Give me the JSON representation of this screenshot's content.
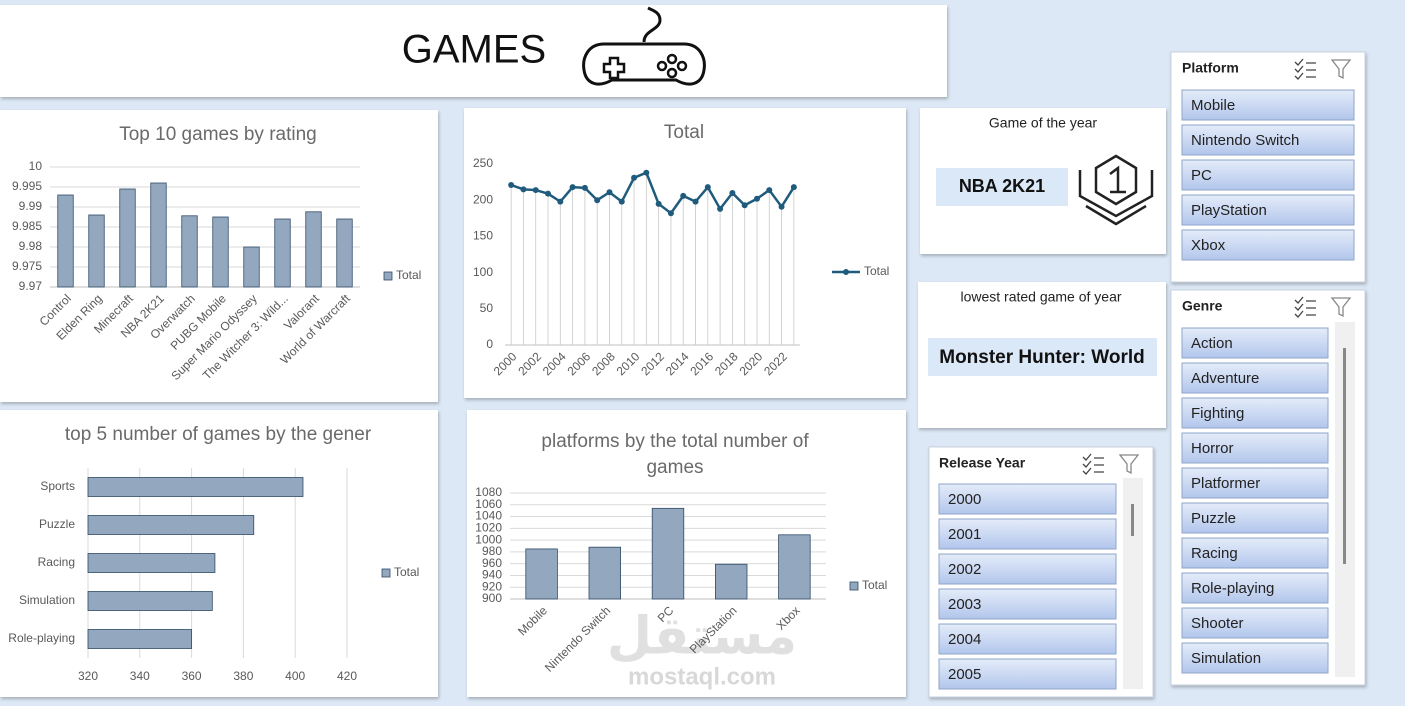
{
  "header": {
    "title": "GAMES"
  },
  "cards": [
    {
      "label": "Game of the year",
      "value": "NBA 2K21"
    },
    {
      "label": "lowest rated game of year",
      "value": "Monster Hunter: World"
    }
  ],
  "watermark": {
    "logo": "مستقل",
    "site": "mostaql.com"
  },
  "slicers": [
    {
      "title": "Platform",
      "items": [
        "Mobile",
        "Nintendo Switch",
        "PC",
        "PlayStation",
        "Xbox"
      ]
    },
    {
      "title": "Genre",
      "items": [
        "Action",
        "Adventure",
        "Fighting",
        "Horror",
        "Platformer",
        "Puzzle",
        "Racing",
        "Role-playing",
        "Shooter",
        "Simulation"
      ]
    },
    {
      "title": "Release Year",
      "items": [
        "2000",
        "2001",
        "2002",
        "2003",
        "2004",
        "2005"
      ]
    }
  ],
  "chart_data": [
    {
      "type": "bar",
      "title": "Top 10 games by rating",
      "categories": [
        "Control",
        "Elden Ring",
        "Minecraft",
        "NBA 2K21",
        "Overwatch",
        "PUBG Mobile",
        "Super Mario Odyssey",
        "The Witcher 3: Wild...",
        "Valorant",
        "World of Warcraft"
      ],
      "series": [
        {
          "name": "Total",
          "color": "#93a8bf",
          "values": [
            9.993,
            9.988,
            9.9945,
            9.996,
            9.9878,
            9.9875,
            9.98,
            9.987,
            9.9888,
            9.987
          ]
        }
      ],
      "ylim": [
        9.97,
        10
      ],
      "yticks": [
        9.97,
        9.975,
        9.98,
        9.985,
        9.99,
        9.995,
        10
      ],
      "grid": true,
      "legend": "right"
    },
    {
      "type": "line",
      "title": "Total",
      "categories": [
        "2000",
        null,
        "2002",
        null,
        "2004",
        null,
        "2006",
        null,
        "2008",
        null,
        "2010",
        null,
        "2012",
        null,
        "2014",
        null,
        "2016",
        null,
        "2018",
        null,
        "2020",
        null,
        "2022",
        null
      ],
      "series": [
        {
          "name": "Total",
          "color": "#1f5b7d",
          "values": [
            221,
            215,
            214,
            209,
            198,
            218,
            217,
            200,
            211,
            198,
            231,
            238,
            195,
            182,
            206,
            198,
            218,
            188,
            210,
            193,
            202,
            214,
            191,
            218
          ]
        }
      ],
      "ylim": [
        0,
        250
      ],
      "yticks": [
        0,
        50,
        100,
        150,
        200,
        250
      ],
      "grid": false,
      "legend": "right"
    },
    {
      "type": "hbar",
      "title": "top 5 number of games by the gener",
      "categories": [
        "Sports",
        "Puzzle",
        "Racing",
        "Simulation",
        "Role-playing"
      ],
      "series": [
        {
          "name": "Total",
          "color": "#93a8bf",
          "values": [
            403,
            384,
            369,
            368,
            360
          ]
        }
      ],
      "xlim": [
        320,
        420
      ],
      "xticks": [
        320,
        340,
        360,
        380,
        400,
        420
      ],
      "grid": true,
      "legend": "right"
    },
    {
      "type": "bar",
      "title": "platforms by the total number of games",
      "categories": [
        "Mobile",
        "Nintendo Switch",
        "PC",
        "PlayStation",
        "Xbox"
      ],
      "series": [
        {
          "name": "Total",
          "color": "#93a8bf",
          "values": [
            985,
            988,
            1054,
            959,
            1009
          ]
        }
      ],
      "ylim": [
        900,
        1080
      ],
      "yticks": [
        900,
        920,
        940,
        960,
        980,
        1000,
        1020,
        1040,
        1060,
        1080
      ],
      "grid": true,
      "legend": "right"
    }
  ]
}
